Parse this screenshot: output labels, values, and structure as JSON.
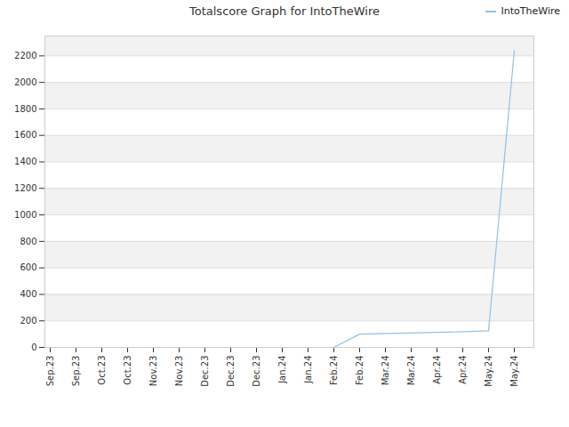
{
  "chart_data": {
    "type": "line",
    "title": "Totalscore Graph for IntoTheWire",
    "categories": [
      "Sep.23",
      "Sep.23",
      "Oct.23",
      "Oct.23",
      "Nov.23",
      "Nov.23",
      "Dec.23",
      "Dec.23",
      "Dec.23",
      "Jan.24",
      "Jan.24",
      "Feb.24",
      "Feb.24",
      "Mar.24",
      "Mar.24",
      "Apr.24",
      "Apr.24",
      "May.24",
      "May.24"
    ],
    "series": [
      {
        "name": "IntoTheWire",
        "color": "#8fc1ea",
        "values": [
          0,
          0,
          0,
          0,
          0,
          0,
          0,
          0,
          0,
          0,
          0,
          0,
          100,
          105,
          108,
          113,
          118,
          125,
          2240
        ]
      }
    ],
    "ylim": [
      0,
      2350
    ],
    "yticks": [
      0,
      200,
      400,
      600,
      800,
      1000,
      1200,
      1400,
      1600,
      1800,
      2000,
      2200
    ],
    "grid": true,
    "legend": "top-right"
  }
}
